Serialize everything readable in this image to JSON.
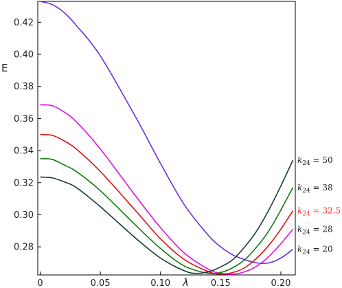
{
  "chart_data": {
    "type": "line",
    "xlabel": "λ",
    "ylabel": "E",
    "xlim": [
      -0.002,
      0.212
    ],
    "ylim": [
      0.2625,
      0.433
    ],
    "grid": false,
    "xticks": [
      0,
      0.05,
      0.1,
      0.15,
      0.2
    ],
    "xtick_labels": [
      "0",
      "0.05",
      "0.10",
      "0.15",
      "0.20"
    ],
    "yticks": [
      0.28,
      0.3,
      0.32,
      0.34,
      0.36,
      0.38,
      0.4,
      0.42
    ],
    "ytick_labels": [
      "0.28",
      "0.30",
      "0.32",
      "0.34",
      "0.36",
      "0.38",
      "0.40",
      "0.42"
    ],
    "series": [
      {
        "name": "k24 = 20",
        "label_parts": {
          "base": "k",
          "sub": "24",
          "rhs": " = 20"
        },
        "color": "#6a2ee6",
        "label_color": "#222222",
        "x": [
          0,
          0.01,
          0.02,
          0.03,
          0.05,
          0.08,
          0.1,
          0.12,
          0.14,
          0.15,
          0.16,
          0.17,
          0.18,
          0.19,
          0.2,
          0.21
        ],
        "y": [
          0.433,
          0.431,
          0.426,
          0.418,
          0.399,
          0.36,
          0.332,
          0.306,
          0.287,
          0.28,
          0.275,
          0.272,
          0.27,
          0.27,
          0.273,
          0.2785
        ]
      },
      {
        "name": "k24 = 28",
        "label_parts": {
          "base": "k",
          "sub": "24",
          "rhs": " = 28"
        },
        "color": "#e010e0",
        "label_color": "#222222",
        "x": [
          0,
          0.01,
          0.02,
          0.03,
          0.05,
          0.08,
          0.1,
          0.12,
          0.14,
          0.15,
          0.16,
          0.17,
          0.18,
          0.19,
          0.2,
          0.21
        ],
        "y": [
          0.3685,
          0.368,
          0.364,
          0.358,
          0.341,
          0.311,
          0.292,
          0.276,
          0.266,
          0.2635,
          0.263,
          0.2645,
          0.268,
          0.274,
          0.282,
          0.291
        ]
      },
      {
        "name": "k24 = 32.5",
        "label_parts": {
          "base": "k",
          "sub": "24",
          "rhs": " = 32.5"
        },
        "color": "#dd1111",
        "label_color": "#ff3030",
        "x": [
          0,
          0.01,
          0.02,
          0.03,
          0.05,
          0.08,
          0.1,
          0.12,
          0.14,
          0.15,
          0.16,
          0.17,
          0.18,
          0.19,
          0.2,
          0.21
        ],
        "y": [
          0.35,
          0.3495,
          0.346,
          0.341,
          0.327,
          0.302,
          0.285,
          0.272,
          0.2645,
          0.263,
          0.264,
          0.267,
          0.273,
          0.281,
          0.291,
          0.3025
        ]
      },
      {
        "name": "k24 = 38",
        "label_parts": {
          "base": "k",
          "sub": "24",
          "rhs": " = 38"
        },
        "color": "#0f7a10",
        "label_color": "#222222",
        "x": [
          0,
          0.01,
          0.02,
          0.03,
          0.05,
          0.08,
          0.1,
          0.12,
          0.14,
          0.15,
          0.16,
          0.17,
          0.18,
          0.19,
          0.2,
          0.21
        ],
        "y": [
          0.335,
          0.3345,
          0.331,
          0.327,
          0.315,
          0.293,
          0.279,
          0.268,
          0.2635,
          0.264,
          0.267,
          0.272,
          0.28,
          0.29,
          0.303,
          0.317
        ]
      },
      {
        "name": "k24 = 50",
        "label_parts": {
          "base": "k",
          "sub": "24",
          "rhs": " = 50"
        },
        "color": "#163c2e",
        "label_color": "#222222",
        "x": [
          0,
          0.01,
          0.02,
          0.03,
          0.05,
          0.08,
          0.1,
          0.12,
          0.13,
          0.14,
          0.15,
          0.16,
          0.17,
          0.18,
          0.19,
          0.2,
          0.21
        ],
        "y": [
          0.3235,
          0.323,
          0.3205,
          0.317,
          0.305,
          0.285,
          0.273,
          0.265,
          0.2635,
          0.2645,
          0.2675,
          0.272,
          0.28,
          0.29,
          0.303,
          0.318,
          0.334
        ]
      }
    ]
  }
}
